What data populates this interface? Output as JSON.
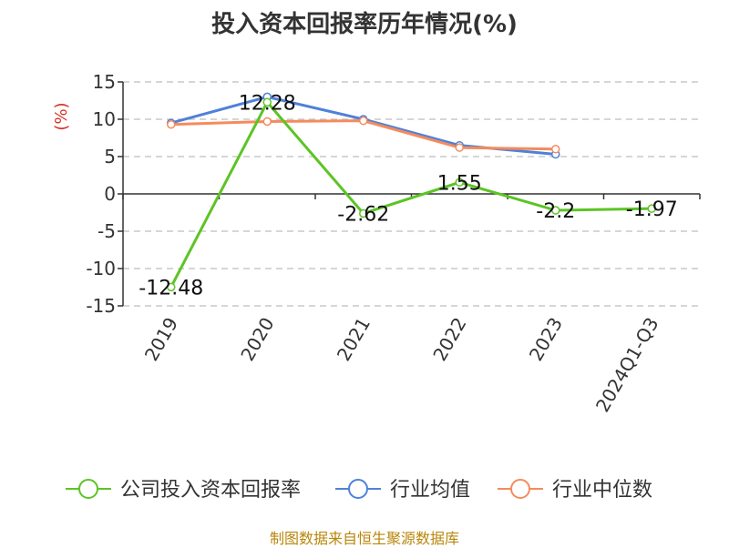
{
  "chart_data": {
    "type": "line",
    "title": "投入资本回报率历年情况(%)",
    "ylabel": "(%)",
    "categories": [
      "2019",
      "2020",
      "2021",
      "2022",
      "2023",
      "2024Q1-Q3"
    ],
    "ylim": [
      -15,
      15
    ],
    "yticks": [
      15,
      10,
      5,
      0,
      -5,
      -10,
      -15
    ],
    "grid": true,
    "legend_position": "bottom",
    "series": [
      {
        "name": "公司投入资本回报率",
        "color": "#5cc424",
        "values": [
          -12.48,
          12.28,
          -2.62,
          1.55,
          -2.2,
          -1.97
        ],
        "labels": [
          "-12.48",
          "12.28",
          "-2.62",
          "1.55",
          "-2.2",
          "-1.97"
        ]
      },
      {
        "name": "行业均值",
        "color": "#4f81d9",
        "values": [
          9.5,
          13.0,
          10.0,
          6.5,
          5.3,
          null
        ]
      },
      {
        "name": "行业中位数",
        "color": "#f58b5c",
        "values": [
          9.3,
          9.7,
          9.8,
          6.2,
          6.0,
          null
        ]
      }
    ]
  },
  "footer": "制图数据来自恒生聚源数据库"
}
